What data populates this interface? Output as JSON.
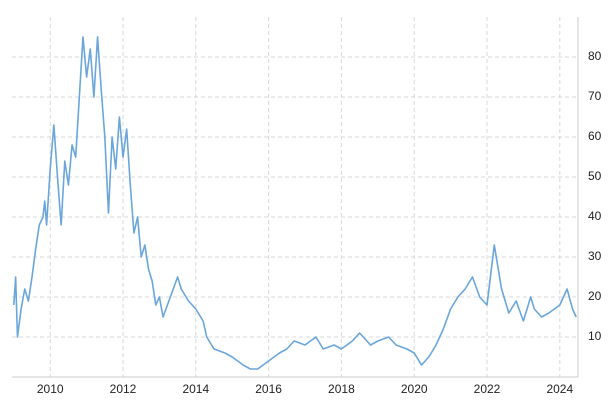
{
  "chart_data": {
    "type": "line",
    "x": [
      2009.0,
      2009.05,
      2009.1,
      2009.2,
      2009.3,
      2009.4,
      2009.5,
      2009.6,
      2009.7,
      2009.8,
      2009.85,
      2009.9,
      2010.0,
      2010.1,
      2010.2,
      2010.3,
      2010.4,
      2010.5,
      2010.6,
      2010.7,
      2010.8,
      2010.9,
      2011.0,
      2011.1,
      2011.2,
      2011.3,
      2011.4,
      2011.5,
      2011.6,
      2011.7,
      2011.8,
      2011.9,
      2012.0,
      2012.1,
      2012.2,
      2012.3,
      2012.4,
      2012.5,
      2012.6,
      2012.7,
      2012.8,
      2012.9,
      2013.0,
      2013.1,
      2013.3,
      2013.5,
      2013.6,
      2013.8,
      2014.0,
      2014.2,
      2014.3,
      2014.5,
      2014.8,
      2015.0,
      2015.3,
      2015.5,
      2015.7,
      2016.0,
      2016.3,
      2016.5,
      2016.7,
      2017.0,
      2017.3,
      2017.5,
      2017.8,
      2018.0,
      2018.3,
      2018.5,
      2018.8,
      2019.0,
      2019.3,
      2019.5,
      2019.8,
      2020.0,
      2020.2,
      2020.4,
      2020.6,
      2020.8,
      2021.0,
      2021.2,
      2021.4,
      2021.6,
      2021.8,
      2022.0,
      2022.2,
      2022.4,
      2022.6,
      2022.8,
      2023.0,
      2023.2,
      2023.3,
      2023.5,
      2023.7,
      2024.0,
      2024.2,
      2024.35,
      2024.45
    ],
    "values": [
      18,
      25,
      10,
      17,
      22,
      19,
      25,
      32,
      38,
      40,
      44,
      38,
      52,
      63,
      50,
      38,
      54,
      48,
      58,
      55,
      70,
      85,
      75,
      82,
      70,
      85,
      72,
      60,
      41,
      60,
      52,
      65,
      55,
      62,
      48,
      36,
      40,
      30,
      33,
      27,
      24,
      18,
      20,
      15,
      20,
      25,
      22,
      19,
      17,
      14,
      10,
      7,
      6,
      5,
      3,
      2,
      2,
      4,
      6,
      7,
      9,
      8,
      10,
      7,
      8,
      7,
      9,
      11,
      8,
      9,
      10,
      8,
      7,
      6,
      3,
      5,
      8,
      12,
      17,
      20,
      22,
      25,
      20,
      18,
      33,
      22,
      16,
      19,
      14,
      20,
      17,
      15,
      16,
      18,
      22,
      17,
      15
    ],
    "color": "#6aa6dc",
    "xlim": [
      2008.95,
      2024.5
    ],
    "xticks": [
      2010,
      2012,
      2014,
      2016,
      2018,
      2020,
      2022,
      2024
    ],
    "ylim": [
      0,
      90
    ],
    "yticks": [
      10,
      20,
      30,
      40,
      50,
      60,
      70,
      80
    ],
    "grid": true
  }
}
